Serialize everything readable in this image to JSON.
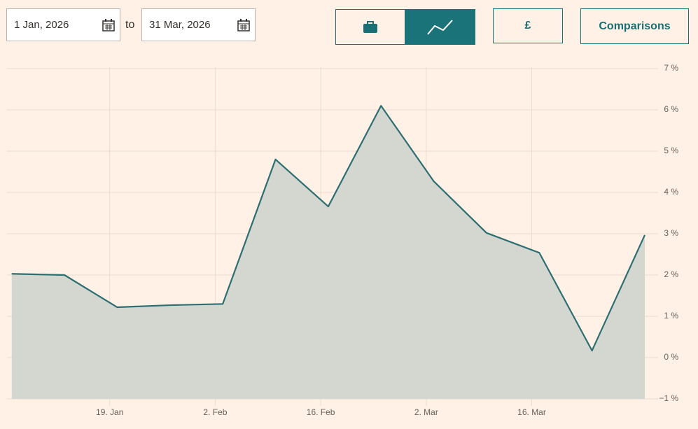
{
  "controls": {
    "start_date": "1 Jan, 2026",
    "separator": "to",
    "end_date": "31 Mar, 2026",
    "currency_button": "£",
    "comparisons_button": "Comparisons"
  },
  "chart_data": {
    "type": "area",
    "x": [
      "2026-01-06",
      "2026-01-13",
      "2026-01-20",
      "2026-01-27",
      "2026-02-03",
      "2026-02-10",
      "2026-02-17",
      "2026-02-24",
      "2026-03-03",
      "2026-03-10",
      "2026-03-17",
      "2026-03-24",
      "2026-03-31"
    ],
    "values": [
      2.03,
      2.0,
      1.22,
      1.27,
      1.3,
      4.8,
      3.66,
      6.1,
      4.27,
      3.02,
      2.54,
      0.17,
      2.97
    ],
    "color": "#2d6e72",
    "fill": "#d4d7d0",
    "xlim": [
      "2026-01-05",
      "2026-03-31"
    ],
    "xticks": [
      {
        "value": "2026-01-19",
        "label": "19. Jan"
      },
      {
        "value": "2026-02-02",
        "label": "2. Feb"
      },
      {
        "value": "2026-02-16",
        "label": "16. Feb"
      },
      {
        "value": "2026-03-02",
        "label": "2. Mar"
      },
      {
        "value": "2026-03-16",
        "label": "16. Mar"
      }
    ],
    "ylim": [
      -1,
      7
    ],
    "yticks": [
      {
        "value": -1,
        "label": "−1 %"
      },
      {
        "value": 0,
        "label": "0 %"
      },
      {
        "value": 1,
        "label": "1 %"
      },
      {
        "value": 2,
        "label": "2 %"
      },
      {
        "value": 3,
        "label": "3 %"
      },
      {
        "value": 4,
        "label": "4 %"
      },
      {
        "value": 5,
        "label": "5 %"
      },
      {
        "value": 6,
        "label": "6 %"
      },
      {
        "value": 7,
        "label": "7 %"
      }
    ],
    "grid": true
  }
}
